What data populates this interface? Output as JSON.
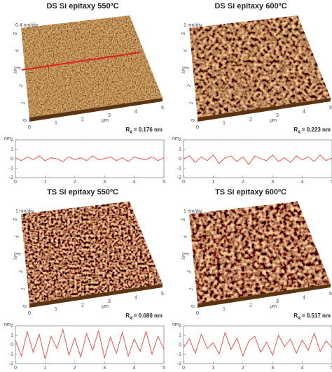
{
  "panels": [
    {
      "title": "DS Si epitaxy 550ºC",
      "z_scale": "0.4 nm/div",
      "axis_unit": "μm",
      "image_xticks": [
        0,
        1,
        2,
        3,
        4,
        5
      ],
      "image_yticks": [
        0,
        1,
        2,
        3,
        4,
        5
      ],
      "line_scan": true,
      "roughness": {
        "symbol": "R",
        "subscript": "q",
        "text": "= 0.176 nm"
      },
      "profile": {
        "type": "line",
        "y_unit": "nm",
        "color": "#e8453c",
        "xlim": [
          0,
          5
        ],
        "ylim": [
          -2,
          2
        ],
        "xticks": [
          0,
          1,
          2,
          3,
          4,
          5
        ],
        "yticks": [
          -2,
          -1,
          0,
          1,
          2
        ],
        "x": [
          0,
          0.2,
          0.4,
          0.6,
          0.8,
          1,
          1.2,
          1.4,
          1.6,
          1.8,
          2,
          2.2,
          2.4,
          2.6,
          2.8,
          3,
          3.2,
          3.4,
          3.6,
          3.8,
          4,
          4.2,
          4.4,
          4.6,
          4.8,
          5
        ],
        "values": [
          0.1,
          -0.2,
          0.2,
          -0.1,
          0.3,
          -0.2,
          0.1,
          0,
          -0.3,
          0.2,
          -0.1,
          0.1,
          -0.2,
          0.3,
          -0.1,
          0,
          0.2,
          -0.2,
          0.1,
          -0.3,
          0.2,
          0,
          -0.1,
          0.2,
          -0.2,
          0.1
        ]
      }
    },
    {
      "title": "DS Si epitaxy 600ºC",
      "z_scale": "1 nm/div",
      "axis_unit": "μm",
      "image_xticks": [
        0,
        1,
        2,
        3,
        4,
        5
      ],
      "image_yticks": [
        0,
        1,
        2,
        3,
        4,
        5
      ],
      "line_scan": false,
      "roughness": {
        "symbol": "R",
        "subscript": "q",
        "text": "= 0.223 nm"
      },
      "profile": {
        "type": "line",
        "y_unit": "nm",
        "color": "#e8453c",
        "xlim": [
          0,
          5
        ],
        "ylim": [
          -2,
          2
        ],
        "xticks": [
          0,
          1,
          2,
          3,
          4,
          5
        ],
        "yticks": [
          -2,
          -1,
          0,
          1,
          2
        ],
        "x": [
          0,
          0.2,
          0.4,
          0.6,
          0.8,
          1,
          1.2,
          1.4,
          1.6,
          1.8,
          2,
          2.2,
          2.4,
          2.6,
          2.8,
          3,
          3.2,
          3.4,
          3.6,
          3.8,
          4,
          4.2,
          4.4,
          4.6,
          4.8,
          5
        ],
        "values": [
          0,
          0.3,
          -0.4,
          0.2,
          -0.2,
          0.4,
          -0.5,
          0.1,
          0.3,
          -0.3,
          0.2,
          -0.6,
          0.3,
          0,
          -0.2,
          0.4,
          -0.3,
          0.1,
          -0.4,
          0.3,
          -0.1,
          0.2,
          -0.3,
          0.4,
          -0.2,
          0.1
        ]
      }
    },
    {
      "title": "TS Si epitaxy 550ºC",
      "z_scale": "1 nm/div",
      "axis_unit": "μm",
      "image_xticks": [
        0,
        1,
        2,
        3,
        4,
        5
      ],
      "image_yticks": [
        0,
        1,
        2,
        3,
        4,
        5
      ],
      "line_scan": false,
      "roughness": {
        "symbol": "R",
        "subscript": "q",
        "text": "= 0.680 nm"
      },
      "profile": {
        "type": "line",
        "y_unit": "nm",
        "color": "#e8453c",
        "xlim": [
          0,
          5
        ],
        "ylim": [
          -2,
          2
        ],
        "xticks": [
          0,
          1,
          2,
          3,
          4,
          5
        ],
        "yticks": [
          -2,
          -1,
          0,
          1,
          2
        ],
        "x": [
          0,
          0.2,
          0.4,
          0.6,
          0.8,
          1,
          1.2,
          1.4,
          1.6,
          1.8,
          2,
          2.2,
          2.4,
          2.6,
          2.8,
          3,
          3.2,
          3.4,
          3.6,
          3.8,
          4,
          4.2,
          4.4,
          4.6,
          4.8,
          5
        ],
        "values": [
          0.5,
          -1.2,
          1.4,
          -0.8,
          1.1,
          -1.5,
          0.9,
          -0.4,
          1.6,
          -1.1,
          0.7,
          -1.3,
          1.2,
          -0.6,
          1.5,
          -1.4,
          0.8,
          -0.9,
          1.3,
          -1.2,
          0.6,
          -0.7,
          1.4,
          -1.0,
          0.9,
          -0.5
        ]
      }
    },
    {
      "title": "TS Si epitaxy 600ºC",
      "z_scale": "1 nm/div",
      "axis_unit": "μm",
      "image_xticks": [
        0,
        1,
        2,
        3,
        4,
        5
      ],
      "image_yticks": [
        0,
        1,
        2,
        3,
        4,
        5
      ],
      "line_scan": false,
      "roughness": {
        "symbol": "R",
        "subscript": "q",
        "text": "= 0.517 nm"
      },
      "profile": {
        "type": "line",
        "y_unit": "nm",
        "color": "#e8453c",
        "xlim": [
          0,
          5
        ],
        "ylim": [
          -2,
          2
        ],
        "xticks": [
          0,
          1,
          2,
          3,
          4,
          5
        ],
        "yticks": [
          -2,
          -1,
          0,
          1,
          2
        ],
        "x": [
          0,
          0.2,
          0.4,
          0.6,
          0.8,
          1,
          1.2,
          1.4,
          1.6,
          1.8,
          2,
          2.2,
          2.4,
          2.6,
          2.8,
          3,
          3.2,
          3.4,
          3.6,
          3.8,
          4,
          4.2,
          4.4,
          4.6,
          4.8,
          5
        ],
        "values": [
          -0.3,
          0.6,
          -0.9,
          1.1,
          -0.4,
          0.2,
          -1.0,
          1.3,
          -0.5,
          0.7,
          -1.2,
          0.4,
          0.9,
          -0.8,
          0.3,
          -1.1,
          1.0,
          -0.2,
          0.6,
          -0.9,
          0.5,
          -0.6,
          1.2,
          -0.7,
          0.4,
          -0.3
        ]
      }
    }
  ]
}
